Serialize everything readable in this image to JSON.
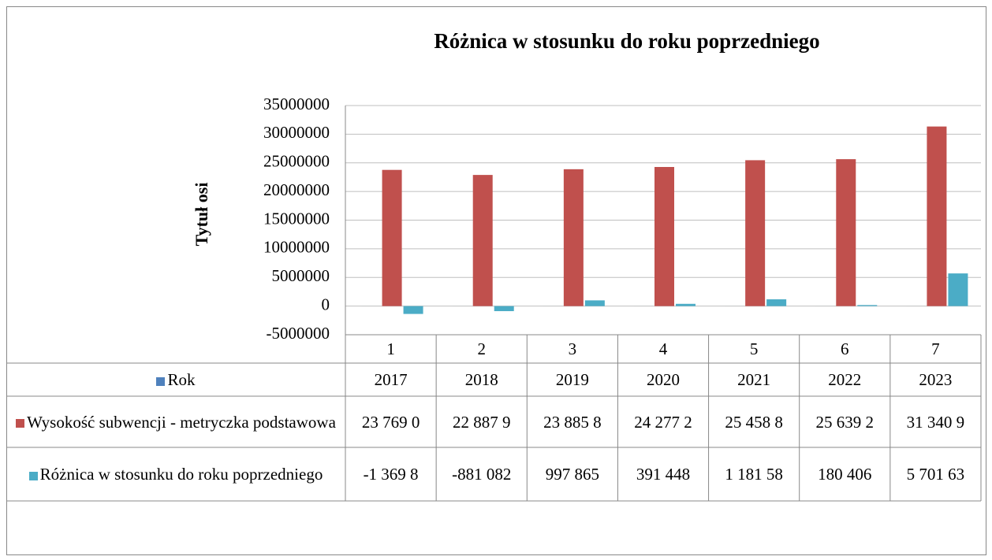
{
  "chart_data": {
    "type": "bar",
    "title": "Różnica w stosunku do roku poprzedniego",
    "y_axis_label": "Tytuł osi",
    "categories": [
      "1",
      "2",
      "3",
      "4",
      "5",
      "6",
      "7"
    ],
    "series": [
      {
        "name": "Rok",
        "color": "#4f81bd",
        "values": [
          2017,
          2018,
          2019,
          2020,
          2021,
          2022,
          2023
        ]
      },
      {
        "name": "Wysokość subwencji - metryczka podstawowa",
        "color": "#c0504d",
        "values": [
          23769000,
          22887900,
          23885800,
          24277200,
          25458800,
          25639200,
          31340900
        ],
        "value_labels": [
          "23 769 0",
          "22 887 9",
          "23 885 8",
          "24 277 2",
          "25 458 8",
          "25 639 2",
          "31 340 9"
        ]
      },
      {
        "name": "Różnica w stosunku do roku poprzedniego",
        "color": "#4bacc6",
        "values": [
          -1369800,
          -881082,
          997865,
          391448,
          1181580,
          180406,
          5701630
        ],
        "value_labels": [
          "-1 369 8",
          "-881 082",
          "997 865",
          "391 448",
          "1 181 58",
          "180 406",
          "5 701 63"
        ]
      }
    ],
    "ylim": [
      -5000000,
      35000000
    ],
    "yticks": [
      -5000000,
      0,
      5000000,
      10000000,
      15000000,
      20000000,
      25000000,
      30000000,
      35000000
    ],
    "grid": true
  }
}
